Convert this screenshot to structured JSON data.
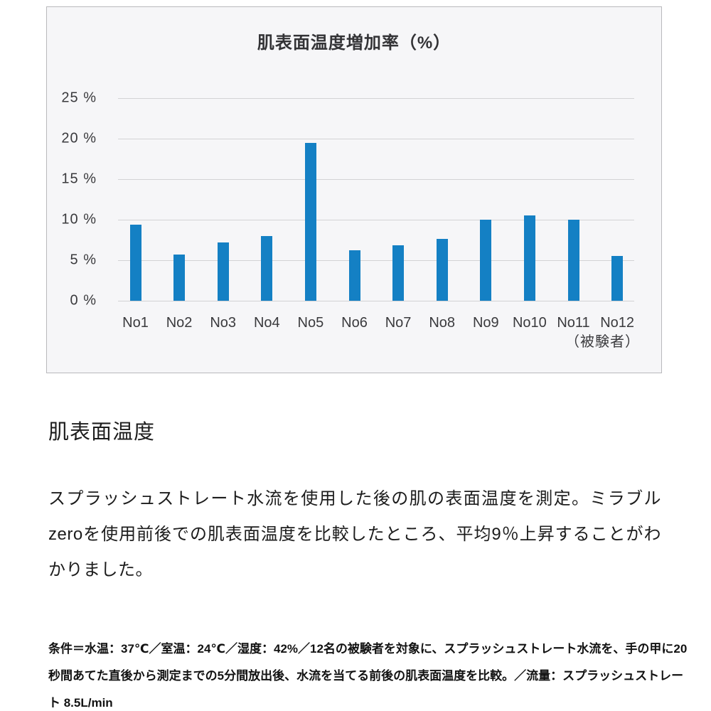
{
  "chart": {
    "title": "肌表面温度増加率（%）",
    "axis_note": "（被験者）"
  },
  "chart_data": {
    "type": "bar",
    "title": "肌表面温度増加率（%）",
    "categories": [
      "No1",
      "No2",
      "No3",
      "No4",
      "No5",
      "No6",
      "No7",
      "No8",
      "No9",
      "No10",
      "No11",
      "No12"
    ],
    "values": [
      9.4,
      5.7,
      7.2,
      8.0,
      19.5,
      6.2,
      6.8,
      7.6,
      10.0,
      10.5,
      10.0,
      5.5
    ],
    "xlabel": "（被験者）",
    "ylabel": "",
    "ylim": [
      0,
      25
    ],
    "yticks": [
      0,
      5,
      10,
      15,
      20,
      25
    ],
    "ytick_suffix": "%",
    "grid": true,
    "legend": false,
    "bar_color": "#1480c4",
    "panel_background": "#f6f6f8",
    "gridline_color": "#d2d2d4"
  },
  "section": {
    "heading": "肌表面温度",
    "body": "スプラッシュストレート水流を使用した後の肌の表面温度を測定。ミラブルzeroを使用前後での肌表面温度を比較したところ、平均9％上昇することがわかりました。",
    "conditions": "条件＝水温：37℃／室温：24℃／湿度：42%／12名の被験者を対象に、スプラッシュストレート水流を、手の甲に20秒間あてた直後から測定までの5分間放出後、水流を当てる前後の肌表面温度を比較。／流量：スプラッシュストレート 8.5L/min"
  }
}
